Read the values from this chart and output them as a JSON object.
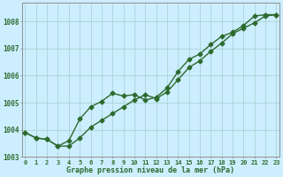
{
  "line1_x": [
    0,
    1,
    2,
    3,
    4,
    5,
    6,
    7,
    8,
    9,
    10,
    11,
    12,
    13,
    14,
    15,
    16,
    17,
    18,
    19,
    20,
    21,
    22,
    23
  ],
  "line1_y": [
    1003.9,
    1003.7,
    1003.65,
    1003.4,
    1003.4,
    1003.7,
    1004.1,
    1004.35,
    1004.6,
    1004.85,
    1005.1,
    1005.3,
    1005.15,
    1005.4,
    1005.85,
    1006.3,
    1006.55,
    1006.9,
    1007.2,
    1007.55,
    1007.75,
    1007.95,
    1008.2,
    1008.25
  ],
  "line2_x": [
    0,
    1,
    2,
    3,
    4,
    5,
    6,
    7,
    8,
    9,
    10,
    11,
    12,
    13,
    14,
    15,
    16,
    17,
    18,
    19,
    20,
    21,
    22,
    23
  ],
  "line2_y": [
    1003.9,
    1003.7,
    1003.65,
    1003.4,
    1003.6,
    1004.4,
    1004.85,
    1005.05,
    1005.35,
    1005.25,
    1005.3,
    1005.1,
    1005.2,
    1005.55,
    1006.15,
    1006.6,
    1006.8,
    1007.15,
    1007.45,
    1007.6,
    1007.85,
    1008.2,
    1008.25,
    1008.25
  ],
  "line_color": "#2d6a2d",
  "background_color": "#cceeff",
  "grid_color": "#aad4d4",
  "xlabel": "Graphe pression niveau de la mer (hPa)",
  "ylim": [
    1003.0,
    1008.7
  ],
  "yticks": [
    1003,
    1004,
    1005,
    1006,
    1007,
    1008
  ],
  "xticks": [
    0,
    1,
    2,
    3,
    4,
    5,
    6,
    7,
    8,
    9,
    10,
    11,
    12,
    13,
    14,
    15,
    16,
    17,
    18,
    19,
    20,
    21,
    22,
    23
  ],
  "marker": "D",
  "marker_size": 2.5,
  "line_width": 1.0
}
